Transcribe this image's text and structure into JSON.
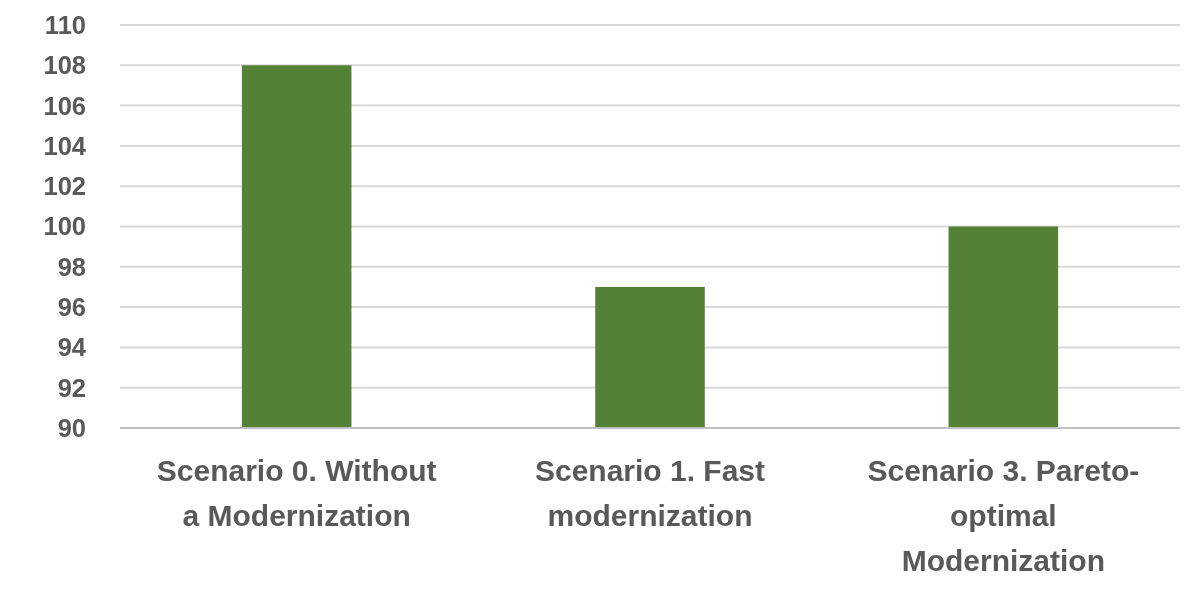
{
  "chart_data": {
    "type": "bar",
    "categories": [
      "Scenario 0. Without a Modernization",
      "Scenario 1. Fast modernization",
      "Scenario 3. Pareto-optimal Modernization"
    ],
    "values": [
      108,
      97,
      100
    ],
    "color": "#538135",
    "ylim": [
      90,
      110
    ],
    "yticks": [
      90,
      92,
      94,
      96,
      98,
      100,
      102,
      104,
      106,
      108,
      110
    ],
    "grid": "y"
  }
}
